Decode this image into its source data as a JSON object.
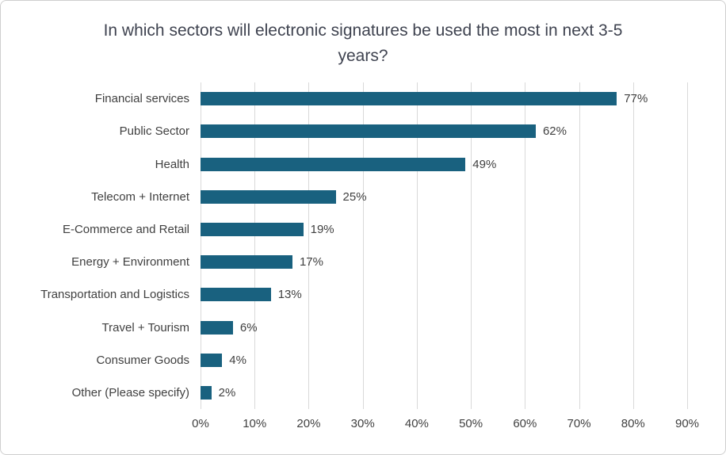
{
  "chart_data": {
    "type": "bar",
    "orientation": "horizontal",
    "title": "In which sectors will electronic signatures be used the most in next 3-5 years?",
    "categories": [
      "Financial services",
      "Public Sector",
      "Health",
      "Telecom + Internet",
      "E-Commerce and Retail",
      "Energy + Environment",
      "Transportation and Logistics",
      "Travel + Tourism",
      "Consumer Goods",
      "Other (Please specify)"
    ],
    "values": [
      77,
      62,
      49,
      25,
      19,
      17,
      13,
      6,
      4,
      2
    ],
    "unit": "%",
    "xlabel": "",
    "ylabel": "",
    "xlim": [
      0,
      90
    ],
    "x_ticks": [
      "0%",
      "10%",
      "20%",
      "30%",
      "40%",
      "50%",
      "60%",
      "70%",
      "80%",
      "90%"
    ],
    "grid": "vertical-only",
    "legend": "none",
    "colors": {
      "bar": "#19617f",
      "gridline": "#d9d9d9",
      "text": "#404040",
      "title": "#3f4350",
      "border": "#cfcfcf"
    }
  }
}
